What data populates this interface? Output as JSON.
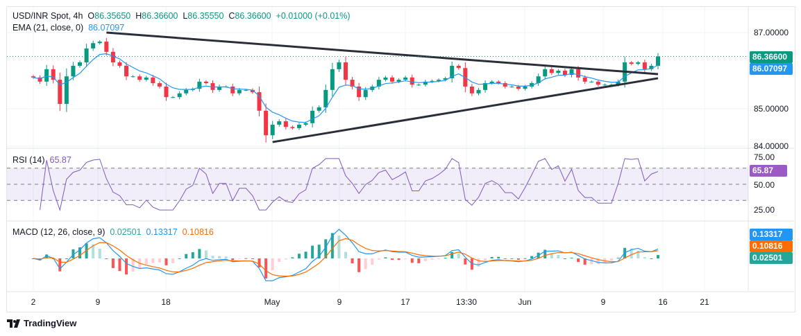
{
  "header": {
    "symbol": "USD/INR Spot, 4h",
    "open_label": "O",
    "open": "86.35650",
    "high_label": "H",
    "high": "86.36600",
    "low_label": "L",
    "low": "86.35550",
    "close_label": "C",
    "close": "86.36600",
    "change": "+0.01000 (+0.01%)"
  },
  "ema": {
    "label": "EMA (21, close, 0)",
    "value": "86.07097"
  },
  "rsi": {
    "label": "RSI (14)",
    "value": "65.87"
  },
  "macd": {
    "label": "MACD (12, 26, close, 9)",
    "hist": "0.02501",
    "macd": "0.13317",
    "signal": "0.10816"
  },
  "price_axis": [
    "87.00000",
    "85.00000",
    "84.00000"
  ],
  "rsi_axis": [
    "75.00",
    "50.00",
    "25.00"
  ],
  "time_axis": [
    "2",
    "9",
    "18",
    "May",
    "9",
    "17",
    "13:30",
    "Jun",
    "9",
    "16",
    "21"
  ],
  "logo": "TradingView",
  "colors": {
    "up": "#089981",
    "down": "#f23645",
    "ema": "#2196f3",
    "rsi": "#7e57c2",
    "macd": "#2196f3",
    "signal": "#ff6d00",
    "last_price": "#089981"
  },
  "chart_data": {
    "type": "candlestick",
    "ylim": [
      83.95,
      87.3
    ],
    "closes": [
      85.81,
      85.7,
      86.03,
      85.75,
      85.11,
      85.84,
      86.12,
      86.21,
      86.58,
      86.72,
      86.76,
      86.49,
      86.21,
      86.12,
      85.84,
      85.84,
      85.75,
      85.81,
      85.66,
      85.57,
      85.29,
      85.29,
      85.39,
      85.48,
      85.51,
      85.7,
      85.66,
      85.48,
      85.57,
      85.57,
      85.39,
      85.48,
      85.48,
      85.42,
      84.93,
      84.28,
      84.56,
      84.65,
      84.5,
      84.47,
      84.56,
      84.6,
      84.93,
      85.02,
      85.48,
      86.03,
      86.21,
      85.75,
      85.57,
      85.29,
      85.48,
      85.57,
      85.75,
      85.81,
      85.7,
      85.75,
      85.81,
      85.62,
      85.62,
      85.7,
      85.72,
      85.75,
      85.79,
      86.12,
      86.06,
      85.57,
      85.39,
      85.48,
      85.66,
      85.7,
      85.66,
      85.57,
      85.57,
      85.51,
      85.57,
      85.66,
      85.84,
      86.03,
      85.93,
      85.99,
      85.88,
      86.03,
      85.81,
      85.7,
      85.7,
      85.62,
      85.62,
      85.62,
      85.7,
      86.21,
      86.17,
      86.21,
      86.03,
      86.12,
      86.366
    ],
    "last_price": 86.366,
    "ema_last": 86.07097,
    "trendlines": [
      {
        "name": "upper",
        "from_index": 11,
        "from_price": 87.0,
        "to_index": 94,
        "to_price": 85.9
      },
      {
        "name": "lower",
        "from_index": 36,
        "from_price": 84.1,
        "to_index": 94,
        "to_price": 85.79
      }
    ],
    "rsi_levels": [
      70,
      50,
      30
    ],
    "rsi_last": 65.87
  }
}
